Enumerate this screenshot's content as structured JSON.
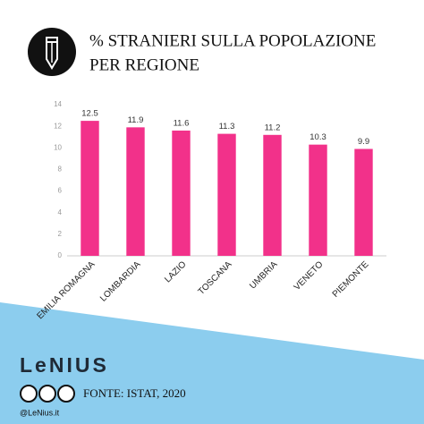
{
  "chart_data": {
    "type": "bar",
    "title": [
      "% STRANIERI SULLA POPOLAZIONE",
      "PER REGIONE"
    ],
    "categories": [
      "EMILIA ROMAGNA",
      "LOMBARDIA",
      "LAZIO",
      "TOSCANA",
      "UMBRIA",
      "VENETO",
      "PIEMONTE"
    ],
    "values": [
      12.5,
      11.9,
      11.6,
      11.3,
      11.2,
      10.3,
      9.9
    ],
    "color": "#f2318a",
    "ylim": [
      0,
      14
    ],
    "yticks": [
      0,
      2,
      4,
      6,
      8,
      10,
      12,
      14
    ],
    "grid": false
  },
  "footer": {
    "logo": "LeNIUS",
    "source": "FONTE: ISTAT, 2020",
    "handle": "@LeNius.it"
  }
}
